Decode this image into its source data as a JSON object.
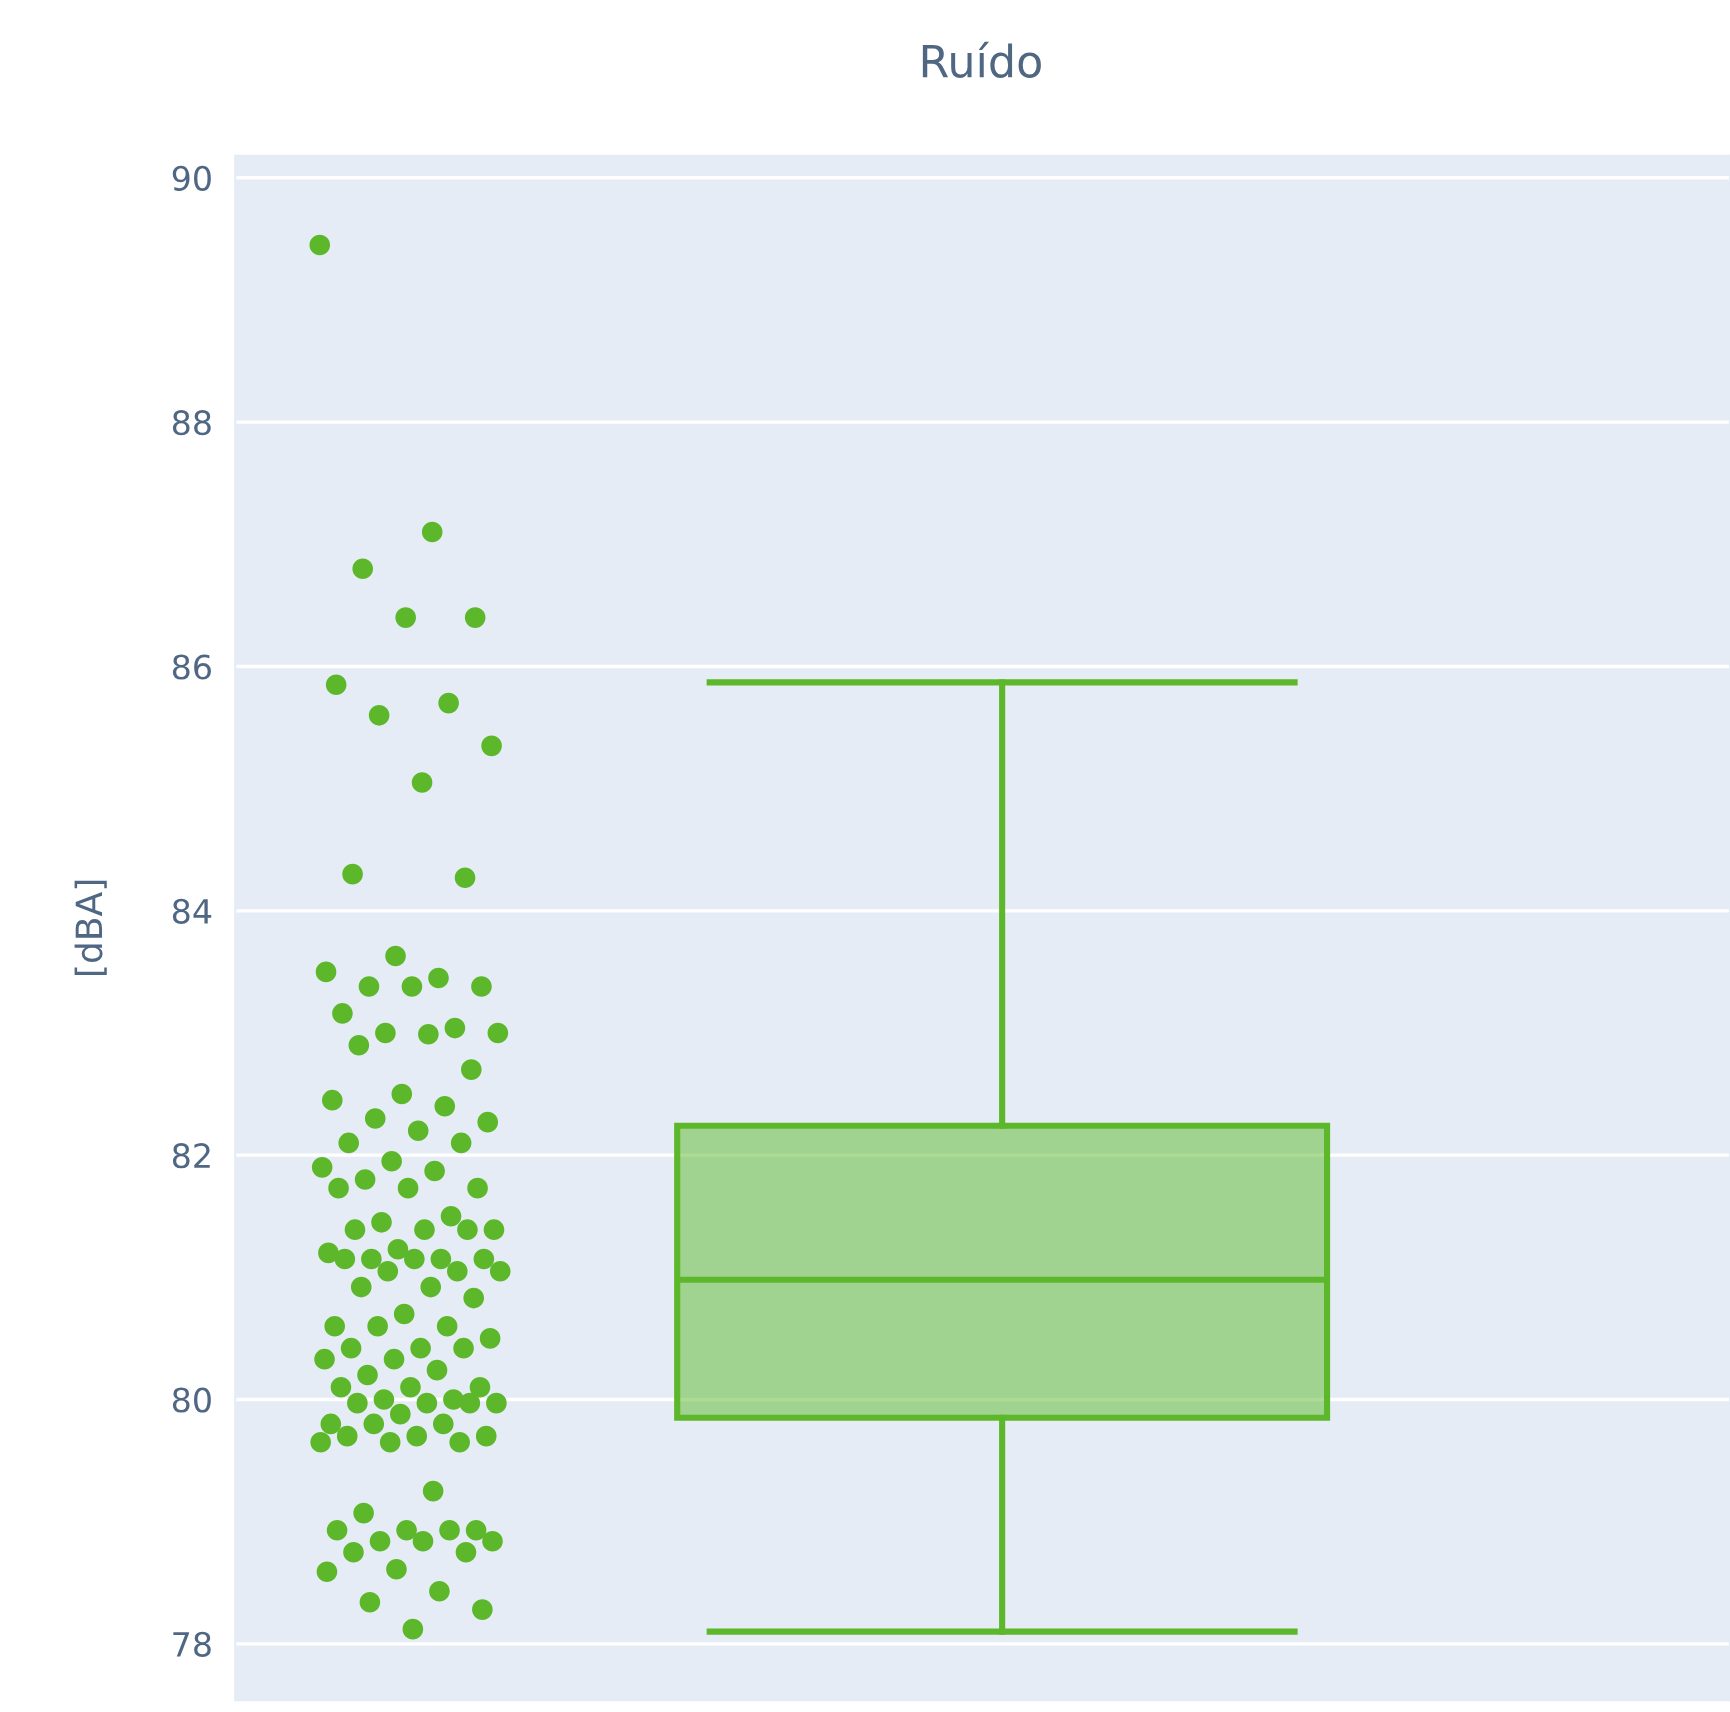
{
  "chart_data": {
    "type": "box",
    "title": "Ruído",
    "ylabel": "[dBA]",
    "categories": [
      null
    ],
    "color": "#5cb82a",
    "grid": "y",
    "boxes": [
      {
        "low": 78.1,
        "q1": 79.85,
        "median": 80.98,
        "q3": 82.24,
        "high": 85.87
      }
    ],
    "series": [
      {
        "type": "scatter",
        "color": "#5cb82a",
        "x": [
          null,
          null,
          null,
          null,
          null,
          null,
          null,
          null,
          null,
          null,
          null,
          null,
          null,
          null,
          null,
          null,
          null,
          null,
          null,
          null,
          null,
          null,
          null,
          null,
          null,
          null,
          null,
          null,
          null,
          null,
          null,
          null,
          null,
          null,
          null,
          null,
          null,
          null,
          null,
          null,
          null,
          null,
          null,
          null,
          null,
          null,
          null,
          null,
          null,
          null,
          null,
          null,
          null,
          null,
          null,
          null,
          null,
          null,
          null,
          null,
          null,
          null,
          null,
          null,
          null,
          null,
          null,
          null,
          null,
          null,
          null,
          null,
          null,
          null,
          null,
          null,
          null,
          null,
          null,
          null,
          null,
          null,
          null,
          null,
          null,
          null,
          null,
          null,
          null,
          null,
          null,
          null,
          null,
          null,
          null,
          null,
          null,
          null,
          null,
          null,
          null,
          null,
          null,
          null,
          null,
          null,
          null
        ],
        "values": [
          89.45,
          87.1,
          86.8,
          86.4,
          86.4,
          85.85,
          85.7,
          85.6,
          85.35,
          85.05,
          84.3,
          84.27,
          83.63,
          83.5,
          83.45,
          83.38,
          83.38,
          83.38,
          83.16,
          83.04,
          83.0,
          83.0,
          82.99,
          82.9,
          82.7,
          82.5,
          82.45,
          82.4,
          82.3,
          82.27,
          82.2,
          82.1,
          82.1,
          81.95,
          81.9,
          81.87,
          81.8,
          81.73,
          81.73,
          81.73,
          81.5,
          81.45,
          81.39,
          81.39,
          81.39,
          81.39,
          81.23,
          81.2,
          81.15,
          81.15,
          81.15,
          81.15,
          81.15,
          81.05,
          81.05,
          81.05,
          80.92,
          80.92,
          80.83,
          80.7,
          80.6,
          80.6,
          80.6,
          80.5,
          80.42,
          80.42,
          80.42,
          80.33,
          80.33,
          80.24,
          80.2,
          80.1,
          80.1,
          80.1,
          80.0,
          80.0,
          79.97,
          79.97,
          79.97,
          79.97,
          79.88,
          79.8,
          79.8,
          79.8,
          79.7,
          79.7,
          79.7,
          79.65,
          79.65,
          79.65,
          79.25,
          79.07,
          78.93,
          78.93,
          78.93,
          78.93,
          78.84,
          78.84,
          78.84,
          78.75,
          78.75,
          78.61,
          78.59,
          78.43,
          78.34,
          78.28,
          78.12
        ]
      }
    ],
    "ylim": [
      77.54,
      90.18
    ],
    "yticks": [
      78,
      80,
      82,
      84,
      86,
      88,
      90
    ]
  }
}
